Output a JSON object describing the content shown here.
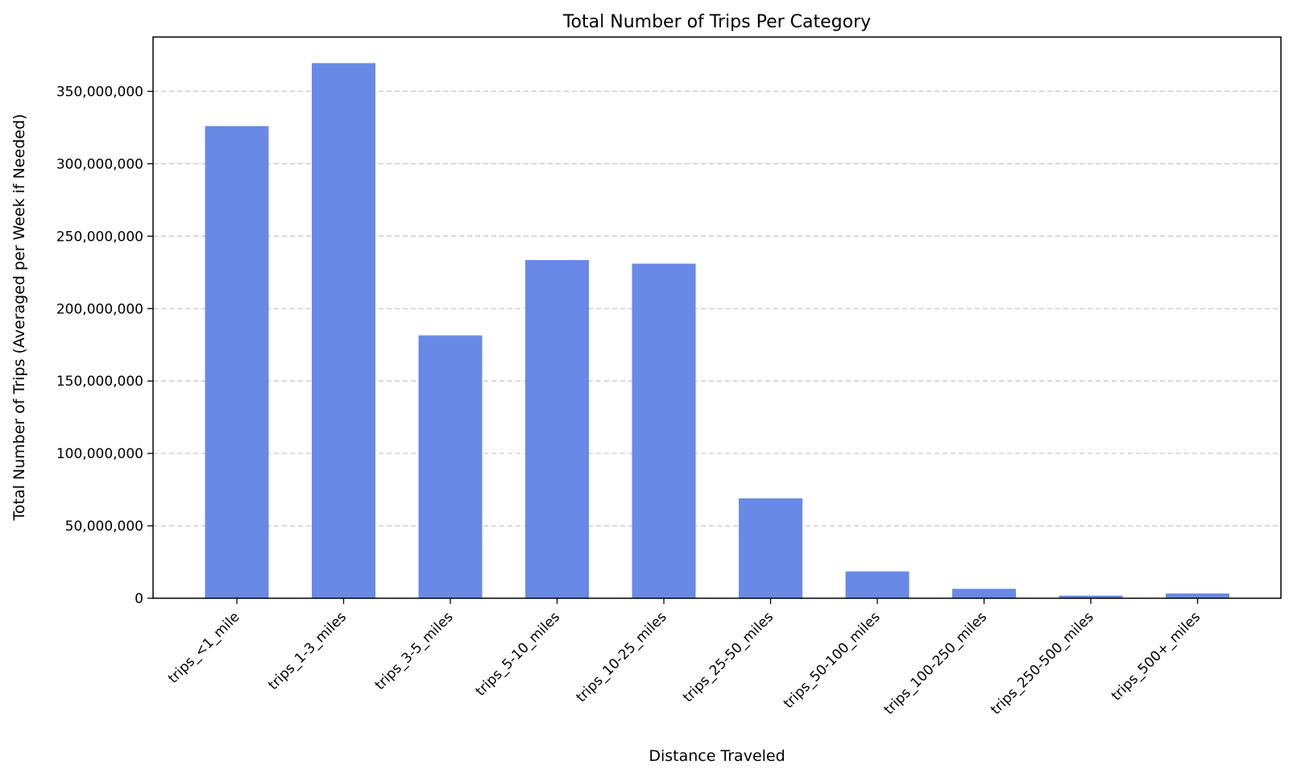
{
  "chart_data": {
    "type": "bar",
    "title": "Total Number of Trips Per Category",
    "xlabel": "Distance Traveled",
    "ylabel": "Total Number of Trips (Averaged per Week if Needed)",
    "categories": [
      "trips_<1_mile",
      "trips_1-3_miles",
      "trips_3-5_miles",
      "trips_5-10_miles",
      "trips_10-25_miles",
      "trips_25-50_miles",
      "trips_50-100_miles",
      "trips_100-250_miles",
      "trips_250-500_miles",
      "trips_500+_miles"
    ],
    "values": [
      326000000,
      369500000,
      181500000,
      233500000,
      231000000,
      69000000,
      18500000,
      6500000,
      1800000,
      3300000
    ],
    "ylim": [
      0,
      387500000
    ],
    "yticks": [
      0,
      50000000,
      100000000,
      150000000,
      200000000,
      250000000,
      300000000,
      350000000
    ],
    "ytick_labels": [
      "0",
      "50,000,000",
      "100,000,000",
      "150,000,000",
      "200,000,000",
      "250,000,000",
      "300,000,000",
      "350,000,000"
    ],
    "grid": "y-dashed",
    "colors": {
      "bar": "#6889e6",
      "grid": "#c8c8c8",
      "axis": "#000000"
    }
  }
}
